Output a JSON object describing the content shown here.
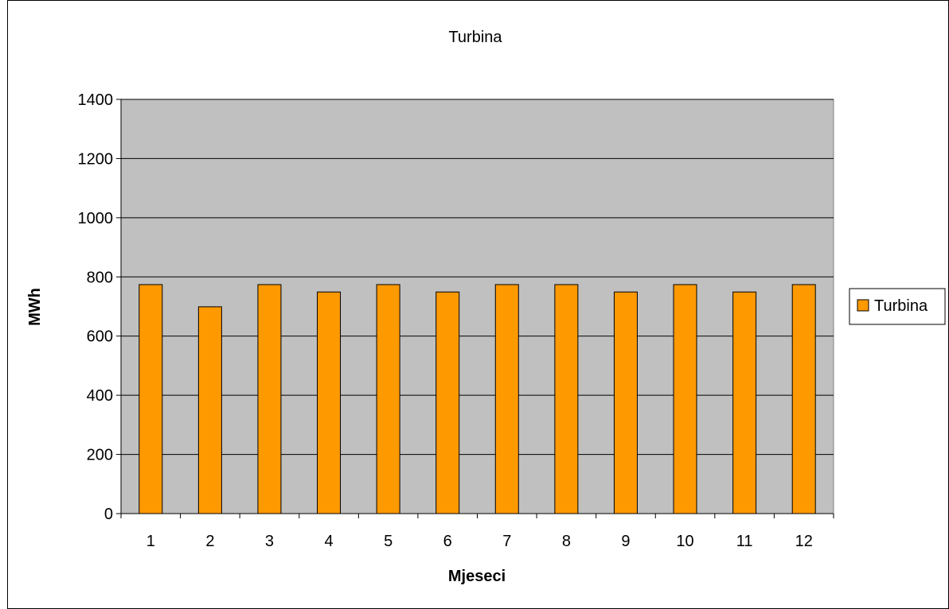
{
  "chart_data": {
    "type": "bar",
    "title": "Turbina",
    "xlabel": "Mjeseci",
    "ylabel": "MWh",
    "categories": [
      "1",
      "2",
      "3",
      "4",
      "5",
      "6",
      "7",
      "8",
      "9",
      "10",
      "11",
      "12"
    ],
    "series": [
      {
        "name": "Turbina",
        "color": "#ff9900",
        "values": [
          774,
          699,
          774,
          749,
          774,
          749,
          774,
          774,
          749,
          774,
          749,
          774
        ]
      }
    ],
    "ylim": [
      0,
      1400
    ],
    "yticks": [
      0,
      200,
      400,
      600,
      800,
      1000,
      1200,
      1400
    ],
    "grid": true,
    "legend_position": "right",
    "plot_background": "#c0c0c0"
  }
}
